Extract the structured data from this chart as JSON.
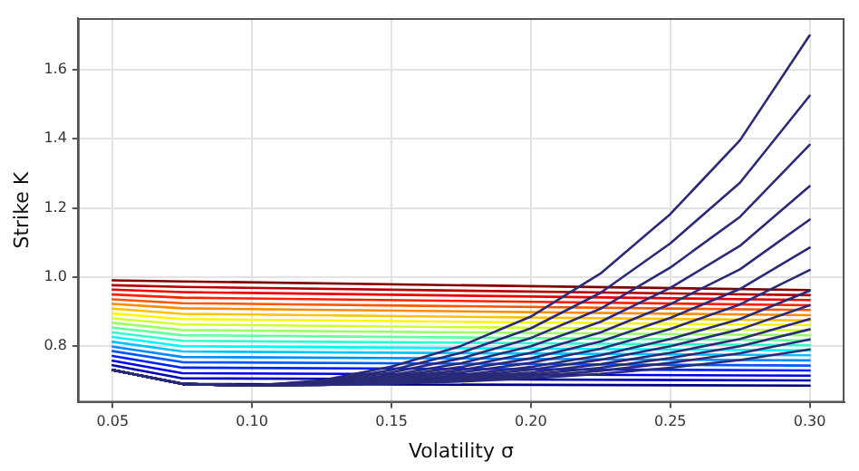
{
  "chart_data": {
    "type": "line",
    "xlabel": "Volatility σ",
    "ylabel": "Strike K",
    "xlim": [
      0.0375,
      0.3125
    ],
    "ylim": [
      0.636,
      1.75
    ],
    "xticks": [
      {
        "value": 0.05,
        "label": "0.05"
      },
      {
        "value": 0.1,
        "label": "0.10"
      },
      {
        "value": 0.15,
        "label": "0.15"
      },
      {
        "value": 0.2,
        "label": "0.20"
      },
      {
        "value": 0.25,
        "label": "0.25"
      },
      {
        "value": 0.3,
        "label": "0.30"
      }
    ],
    "yticks": [
      {
        "value": 0.8,
        "label": "0.8"
      },
      {
        "value": 1,
        "label": "1.0"
      },
      {
        "value": 1.2,
        "label": "1.2"
      },
      {
        "value": 1.4,
        "label": "1.4"
      },
      {
        "value": 1.6,
        "label": "1.6"
      }
    ],
    "grid": true,
    "legend": false,
    "marker": "none",
    "line_style": "solid",
    "series": [
      {
        "color": "#000080",
        "x": [
          0.05,
          0.075,
          0.3
        ],
        "values": [
          0.73,
          0.69,
          0.685
        ]
      },
      {
        "color": "#0000b5",
        "x": [
          0.05,
          0.075,
          0.3
        ],
        "values": [
          0.744,
          0.706,
          0.7
        ]
      },
      {
        "color": "#0000eb",
        "x": [
          0.05,
          0.075,
          0.3
        ],
        "values": [
          0.757,
          0.721,
          0.714
        ]
      },
      {
        "color": "#0021ff",
        "x": [
          0.05,
          0.075,
          0.3
        ],
        "values": [
          0.771,
          0.737,
          0.729
        ]
      },
      {
        "color": "#0057ff",
        "x": [
          0.05,
          0.075,
          0.3
        ],
        "values": [
          0.785,
          0.753,
          0.743
        ]
      },
      {
        "color": "#008cff",
        "x": [
          0.05,
          0.075,
          0.3
        ],
        "values": [
          0.798,
          0.768,
          0.758
        ]
      },
      {
        "color": "#00c2ff",
        "x": [
          0.05,
          0.075,
          0.3
        ],
        "values": [
          0.812,
          0.784,
          0.773
        ]
      },
      {
        "color": "#00f7ff",
        "x": [
          0.05,
          0.075,
          0.3
        ],
        "values": [
          0.826,
          0.799,
          0.787
        ]
      },
      {
        "color": "#2effd1",
        "x": [
          0.05,
          0.075,
          0.3
        ],
        "values": [
          0.839,
          0.815,
          0.802
        ]
      },
      {
        "color": "#63ff9c",
        "x": [
          0.05,
          0.075,
          0.3
        ],
        "values": [
          0.853,
          0.831,
          0.816
        ]
      },
      {
        "color": "#9cff63",
        "x": [
          0.05,
          0.075,
          0.3
        ],
        "values": [
          0.867,
          0.846,
          0.831
        ]
      },
      {
        "color": "#d1ff2e",
        "x": [
          0.05,
          0.075,
          0.3
        ],
        "values": [
          0.88,
          0.862,
          0.845
        ]
      },
      {
        "color": "#fff700",
        "x": [
          0.05,
          0.075,
          0.3
        ],
        "values": [
          0.894,
          0.878,
          0.86
        ]
      },
      {
        "color": "#ffc200",
        "x": [
          0.05,
          0.075,
          0.3
        ],
        "values": [
          0.908,
          0.893,
          0.874
        ]
      },
      {
        "color": "#ff8c00",
        "x": [
          0.05,
          0.075,
          0.3
        ],
        "values": [
          0.922,
          0.909,
          0.889
        ]
      },
      {
        "color": "#ff5700",
        "x": [
          0.05,
          0.075,
          0.3
        ],
        "values": [
          0.935,
          0.924,
          0.904
        ]
      },
      {
        "color": "#ff2100",
        "x": [
          0.05,
          0.075,
          0.3
        ],
        "values": [
          0.949,
          0.94,
          0.918
        ]
      },
      {
        "color": "#eb0000",
        "x": [
          0.05,
          0.075,
          0.3
        ],
        "values": [
          0.963,
          0.956,
          0.933
        ]
      },
      {
        "color": "#b50000",
        "x": [
          0.05,
          0.075,
          0.3
        ],
        "values": [
          0.976,
          0.971,
          0.947
        ]
      },
      {
        "color": "#800000",
        "x": [
          0.05,
          0.075,
          0.3
        ],
        "values": [
          0.99,
          0.987,
          0.962
        ]
      },
      {
        "color": "#2a2a78",
        "x": [
          0.05,
          0.075,
          0.1,
          0.125,
          0.15,
          0.175,
          0.2,
          0.225,
          0.25,
          0.275,
          0.3
        ],
        "values": [
          0.73,
          0.69,
          0.685,
          0.7,
          0.74,
          0.8,
          0.885,
          1.01,
          1.182,
          1.396,
          1.7
        ]
      },
      {
        "color": "#2a2a78",
        "x": [
          0.05,
          0.075,
          0.1,
          0.125,
          0.15,
          0.175,
          0.2,
          0.225,
          0.25,
          0.275,
          0.3
        ],
        "values": [
          0.73,
          0.69,
          0.685,
          0.698,
          0.73,
          0.78,
          0.851,
          0.954,
          1.097,
          1.273,
          1.525
        ]
      },
      {
        "color": "#2a2a78",
        "x": [
          0.05,
          0.075,
          0.1,
          0.125,
          0.15,
          0.175,
          0.2,
          0.225,
          0.25,
          0.275,
          0.3
        ],
        "values": [
          0.73,
          0.69,
          0.685,
          0.696,
          0.723,
          0.764,
          0.823,
          0.908,
          1.027,
          1.174,
          1.383
        ]
      },
      {
        "color": "#2a2a78",
        "x": [
          0.05,
          0.075,
          0.1,
          0.125,
          0.15,
          0.175,
          0.2,
          0.225,
          0.25,
          0.275,
          0.3
        ],
        "values": [
          0.73,
          0.69,
          0.685,
          0.694,
          0.716,
          0.75,
          0.799,
          0.87,
          0.968,
          1.09,
          1.263
        ]
      },
      {
        "color": "#2a2a78",
        "x": [
          0.05,
          0.075,
          0.1,
          0.125,
          0.15,
          0.175,
          0.2,
          0.225,
          0.25,
          0.275,
          0.3
        ],
        "values": [
          0.73,
          0.69,
          0.685,
          0.692,
          0.711,
          0.739,
          0.78,
          0.839,
          0.921,
          1.022,
          1.166
        ]
      },
      {
        "color": "#2a2a78",
        "x": [
          0.05,
          0.075,
          0.1,
          0.125,
          0.15,
          0.175,
          0.2,
          0.225,
          0.25,
          0.275,
          0.3
        ],
        "values": [
          0.73,
          0.69,
          0.685,
          0.691,
          0.707,
          0.73,
          0.764,
          0.813,
          0.881,
          0.965,
          1.085
        ]
      },
      {
        "color": "#2a2a78",
        "x": [
          0.05,
          0.075,
          0.1,
          0.125,
          0.15,
          0.175,
          0.2,
          0.225,
          0.25,
          0.275,
          0.3
        ],
        "values": [
          0.73,
          0.69,
          0.685,
          0.69,
          0.703,
          0.723,
          0.751,
          0.792,
          0.849,
          0.92,
          1.02
        ]
      },
      {
        "color": "#2a2a78",
        "x": [
          0.05,
          0.075,
          0.1,
          0.125,
          0.15,
          0.175,
          0.2,
          0.225,
          0.25,
          0.275,
          0.3
        ],
        "values": [
          0.73,
          0.69,
          0.685,
          0.689,
          0.7,
          0.716,
          0.739,
          0.773,
          0.82,
          0.878,
          0.96
        ]
      },
      {
        "color": "#2a2a78",
        "x": [
          0.05,
          0.075,
          0.1,
          0.125,
          0.15,
          0.175,
          0.2,
          0.225,
          0.25,
          0.275,
          0.3
        ],
        "values": [
          0.73,
          0.69,
          0.685,
          0.689,
          0.698,
          0.711,
          0.731,
          0.76,
          0.799,
          0.848,
          0.918
        ]
      },
      {
        "color": "#2a2a78",
        "x": [
          0.05,
          0.075,
          0.1,
          0.125,
          0.15,
          0.175,
          0.2,
          0.225,
          0.25,
          0.275,
          0.3
        ],
        "values": [
          0.73,
          0.69,
          0.685,
          0.688,
          0.695,
          0.707,
          0.723,
          0.747,
          0.78,
          0.82,
          0.878
        ]
      },
      {
        "color": "#2a2a78",
        "x": [
          0.05,
          0.075,
          0.1,
          0.125,
          0.15,
          0.175,
          0.2,
          0.225,
          0.25,
          0.275,
          0.3
        ],
        "values": [
          0.73,
          0.69,
          0.685,
          0.687,
          0.694,
          0.703,
          0.717,
          0.737,
          0.765,
          0.799,
          0.848
        ]
      },
      {
        "color": "#2a2a78",
        "x": [
          0.05,
          0.075,
          0.1,
          0.125,
          0.15,
          0.175,
          0.2,
          0.225,
          0.25,
          0.275,
          0.3
        ],
        "values": [
          0.73,
          0.69,
          0.685,
          0.687,
          0.692,
          0.7,
          0.711,
          0.728,
          0.751,
          0.779,
          0.819
        ]
      },
      {
        "color": "#2a2a78",
        "x": [
          0.05,
          0.075,
          0.1,
          0.125,
          0.15,
          0.175,
          0.2,
          0.225,
          0.25,
          0.275,
          0.3
        ],
        "values": [
          0.73,
          0.69,
          0.685,
          0.687,
          0.691,
          0.697,
          0.706,
          0.719,
          0.737,
          0.759,
          0.79
        ]
      }
    ]
  }
}
